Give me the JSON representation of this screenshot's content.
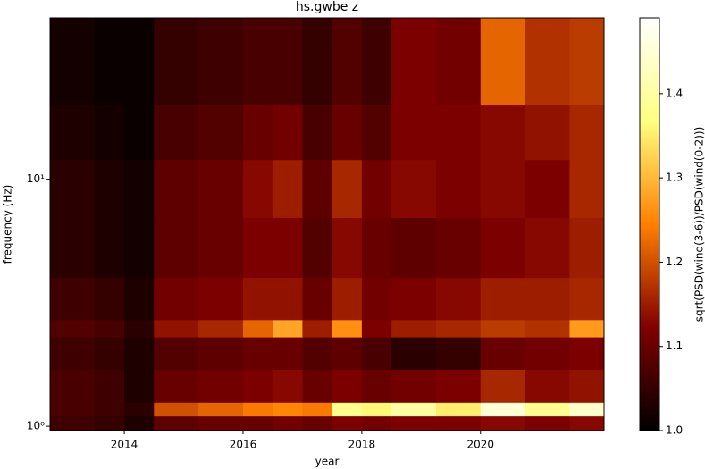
{
  "chart_data": {
    "type": "heatmap",
    "title": "hs.gwbe z",
    "xlabel": "year",
    "ylabel": "frequency (Hz)",
    "yscale": "log",
    "colormap": "afmhot",
    "x_edges": [
      2012.75,
      2013.5,
      2014.0,
      2014.5,
      2015.25,
      2016.0,
      2016.5,
      2017.0,
      2017.5,
      2018.0,
      2018.5,
      2019.25,
      2020.0,
      2020.75,
      2021.5,
      2022.08
    ],
    "y_edges": [
      0.96,
      1.1,
      1.25,
      1.7,
      2.3,
      2.7,
      4,
      7,
      12,
      20,
      45
    ],
    "z": [
      [
        1.06,
        1.05,
        1.03,
        1.09,
        1.1,
        1.1,
        1.11,
        1.1,
        1.12,
        1.11,
        1.12,
        1.12,
        1.13,
        1.12,
        1.13
      ],
      [
        1.07,
        1.06,
        1.04,
        1.2,
        1.22,
        1.24,
        1.25,
        1.24,
        1.38,
        1.36,
        1.4,
        1.35,
        1.45,
        1.38,
        1.44
      ],
      [
        1.07,
        1.06,
        1.03,
        1.1,
        1.11,
        1.12,
        1.13,
        1.1,
        1.12,
        1.1,
        1.11,
        1.12,
        1.16,
        1.13,
        1.14
      ],
      [
        1.06,
        1.05,
        1.03,
        1.08,
        1.09,
        1.1,
        1.1,
        1.08,
        1.09,
        1.07,
        1.04,
        1.05,
        1.1,
        1.11,
        1.12
      ],
      [
        1.08,
        1.07,
        1.04,
        1.14,
        1.16,
        1.22,
        1.28,
        1.15,
        1.26,
        1.12,
        1.15,
        1.16,
        1.18,
        1.17,
        1.27
      ],
      [
        1.06,
        1.05,
        1.03,
        1.11,
        1.12,
        1.14,
        1.14,
        1.1,
        1.15,
        1.11,
        1.12,
        1.13,
        1.15,
        1.15,
        1.16
      ],
      [
        1.04,
        1.03,
        1.02,
        1.09,
        1.1,
        1.12,
        1.12,
        1.08,
        1.13,
        1.1,
        1.09,
        1.1,
        1.12,
        1.13,
        1.15
      ],
      [
        1.04,
        1.03,
        1.02,
        1.09,
        1.1,
        1.13,
        1.15,
        1.09,
        1.16,
        1.11,
        1.13,
        1.12,
        1.13,
        1.12,
        1.16
      ],
      [
        1.03,
        1.02,
        1.01,
        1.07,
        1.08,
        1.1,
        1.11,
        1.07,
        1.1,
        1.08,
        1.12,
        1.12,
        1.13,
        1.14,
        1.16
      ],
      [
        1.02,
        1.01,
        1.01,
        1.05,
        1.06,
        1.07,
        1.07,
        1.05,
        1.08,
        1.06,
        1.12,
        1.11,
        1.22,
        1.17,
        1.18
      ]
    ],
    "xlim": [
      2012.75,
      2022.08
    ],
    "ylim": [
      0.96,
      45
    ],
    "xticks": [
      2014,
      2016,
      2018,
      2020
    ],
    "yticks": [
      {
        "value": 1,
        "label": "10⁰"
      },
      {
        "value": 10,
        "label": "10¹"
      }
    ],
    "colorbar": {
      "label": "sqrt(PSD(wind(3-6))/PSD(wind(0-2)))",
      "lim": [
        1.0,
        1.49
      ],
      "ticks": [
        {
          "value": 1.0,
          "label": "1.0"
        },
        1.1,
        1.2,
        1.3,
        1.4
      ]
    }
  }
}
